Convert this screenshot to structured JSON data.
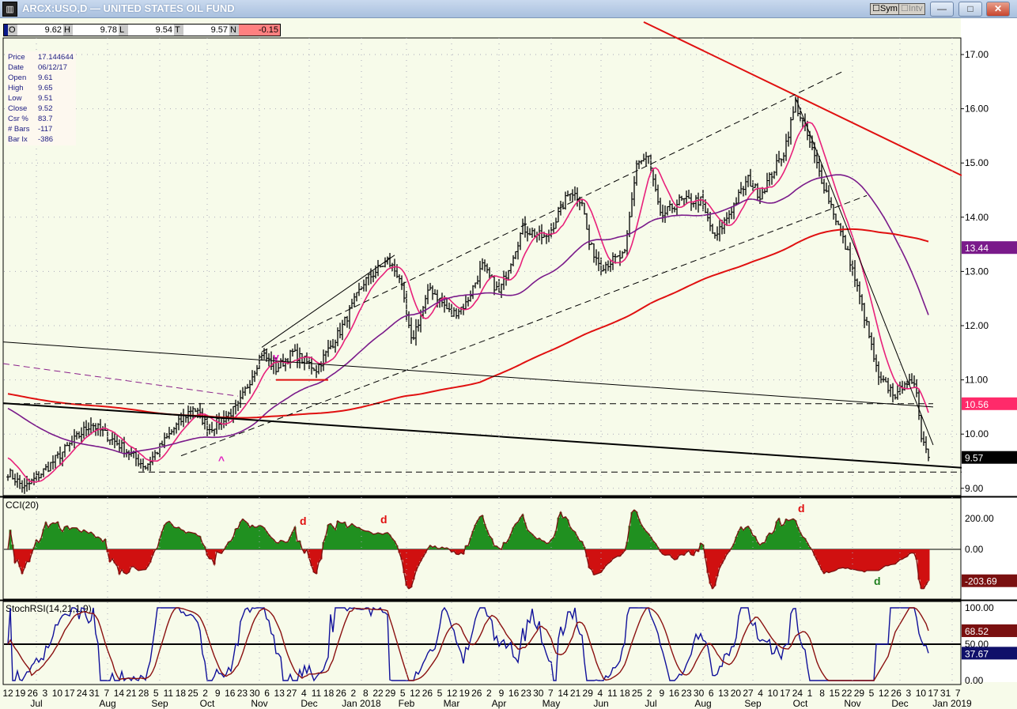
{
  "window": {
    "title": "ARCX:USO,D — UNITED STATES OIL FUND",
    "sym_label": "Sym",
    "intv_label": "Intv",
    "minimize": "—",
    "maximize": "□",
    "close": "✕"
  },
  "ohlc_bar": {
    "o_label": "O",
    "o": "9.62",
    "h_label": "H",
    "h": "9.78",
    "l_label": "L",
    "l": "9.54",
    "t_label": "T",
    "t": "9.57",
    "n_label": "N",
    "n": "-0.15"
  },
  "info": [
    {
      "k": "Price",
      "v": "17.144644"
    },
    {
      "k": "Date",
      "v": "06/12/17"
    },
    {
      "k": "Open",
      "v": "9.61"
    },
    {
      "k": "High",
      "v": "9.65"
    },
    {
      "k": "Low",
      "v": "9.51"
    },
    {
      "k": "Close",
      "v": "9.52"
    },
    {
      "k": "Csr %",
      "v": "83.7"
    },
    {
      "k": "# Bars",
      "v": "-117"
    },
    {
      "k": "Bar Ix",
      "v": "-386"
    }
  ],
  "colors": {
    "accent_red": "#e01010",
    "ma_fast": "#e8207a",
    "ma_mid": "#7a1a8a",
    "ma_slow": "#e01010",
    "cci_pos": "#209020",
    "cci_neg": "#d01010",
    "stoch": "#10109a",
    "stoch_sig": "#8a1010"
  },
  "chart_data": {
    "type": "bar",
    "title": "ARCX:USO,D",
    "ylim": [
      8.9,
      17.6
    ],
    "yticks": [
      "17.00",
      "16.00",
      "15.00",
      "14.00",
      "13.00",
      "12.00",
      "11.00",
      "10.00",
      "9.00"
    ],
    "price_path": [
      [
        0,
        9.3
      ],
      [
        7,
        9.0
      ],
      [
        17,
        9.4
      ],
      [
        35,
        10.2
      ],
      [
        47,
        9.8
      ],
      [
        58,
        9.4
      ],
      [
        70,
        10.1
      ],
      [
        78,
        10.5
      ],
      [
        85,
        10.1
      ],
      [
        97,
        10.5
      ],
      [
        107,
        11.5
      ],
      [
        113,
        11.2
      ],
      [
        120,
        11.5
      ],
      [
        130,
        11.2
      ],
      [
        140,
        11.9
      ],
      [
        150,
        12.8
      ],
      [
        160,
        13.2
      ],
      [
        165,
        12.9
      ],
      [
        170,
        11.7
      ],
      [
        178,
        12.7
      ],
      [
        187,
        12.2
      ],
      [
        193,
        12.4
      ],
      [
        200,
        13.1
      ],
      [
        207,
        12.6
      ],
      [
        217,
        13.8
      ],
      [
        227,
        13.6
      ],
      [
        237,
        14.5
      ],
      [
        242,
        14.3
      ],
      [
        245,
        13.5
      ],
      [
        250,
        13.1
      ],
      [
        260,
        13.3
      ],
      [
        265,
        15.0
      ],
      [
        270,
        15.1
      ],
      [
        275,
        14.0
      ],
      [
        283,
        14.3
      ],
      [
        292,
        14.3
      ],
      [
        298,
        13.6
      ],
      [
        312,
        14.7
      ],
      [
        317,
        14.4
      ],
      [
        327,
        15.2
      ],
      [
        332,
        16.1
      ],
      [
        337,
        15.5
      ],
      [
        343,
        14.7
      ],
      [
        348,
        14.1
      ],
      [
        355,
        13.2
      ],
      [
        362,
        12.0
      ],
      [
        367,
        11.0
      ],
      [
        370,
        10.9
      ],
      [
        375,
        10.7
      ],
      [
        378,
        11.0
      ],
      [
        383,
        10.8
      ],
      [
        385,
        10.0
      ],
      [
        388,
        9.57
      ]
    ],
    "moving_averages": [
      {
        "name": "fast",
        "period": 10
      },
      {
        "name": "mid",
        "period": 50
      },
      {
        "name": "slow",
        "period": 200
      }
    ],
    "trendlines": [
      {
        "name": "red-resistance",
        "color": "#e01010",
        "p1": [
          268,
          17.6
        ],
        "p2": [
          402,
          14.77
        ]
      },
      {
        "name": "long-support",
        "color": "#000",
        "p1": [
          -2,
          10.57
        ],
        "p2": [
          402,
          9.38
        ]
      },
      {
        "name": "thin-down",
        "color": "#000",
        "p1": [
          -2,
          11.7
        ],
        "p2": [
          390,
          10.5
        ]
      },
      {
        "name": "channel-upper",
        "color": "#000",
        "dash": true,
        "p1": [
          107,
          11.52
        ],
        "p2": [
          352,
          16.69
        ]
      },
      {
        "name": "channel-lower",
        "color": "#000",
        "dash": true,
        "p1": [
          73,
          9.6
        ],
        "p2": [
          362,
          14.4
        ]
      },
      {
        "name": "support-930",
        "color": "#000",
        "dash": true,
        "p1": [
          55,
          9.3
        ],
        "p2": [
          402,
          9.3
        ]
      },
      {
        "name": "level-1056",
        "color": "#000",
        "dash": true,
        "p1": [
          -2,
          10.56
        ],
        "p2": [
          390,
          10.56
        ]
      },
      {
        "name": "wedge-left",
        "color": "#000",
        "p1": [
          107,
          11.6
        ],
        "p2": [
          163,
          13.3
        ]
      },
      {
        "name": "decline",
        "color": "#000",
        "p1": [
          332,
          16.2
        ],
        "p2": [
          390,
          9.8
        ]
      },
      {
        "name": "purple-dash",
        "color": "#8a208a",
        "dash": true,
        "p1": [
          -2,
          11.3
        ],
        "p2": [
          97,
          10.7
        ]
      }
    ],
    "annotations": [
      {
        "text": "v",
        "bar": 113,
        "price": 11.35,
        "color": "#e020c0"
      },
      {
        "text": "^",
        "bar": 90,
        "price": 9.45,
        "color": "#e020c0"
      }
    ],
    "right_labels": [
      {
        "text": "13.44",
        "price": 13.44,
        "bg": "#7a1a8a",
        "fg": "#fff"
      },
      {
        "text": "10.56",
        "price": 10.56,
        "bg": "#ff2a6a",
        "fg": "#fff"
      },
      {
        "text": "9.57",
        "price": 9.57,
        "bg": "#000",
        "fg": "#fff"
      }
    ],
    "cci": {
      "label": "CCI(20)",
      "ylim": [
        -260,
        300
      ],
      "yticks": [
        "200.00",
        "0.00"
      ],
      "last": "-203.69",
      "marks": [
        {
          "text": "d",
          "color": "#e01010",
          "bar": 123,
          "value": 160
        },
        {
          "text": "d",
          "color": "#e01010",
          "bar": 157,
          "value": 170
        },
        {
          "text": "d",
          "color": "#e01010",
          "bar": 333,
          "value": 240
        },
        {
          "text": "d",
          "color": "#208020",
          "bar": 365,
          "value": -230
        }
      ]
    },
    "stochrsi": {
      "label": "StochRSI(14,21,1,9)",
      "ylim": [
        -8,
        100
      ],
      "yticks": [
        "100.00",
        "50.00",
        "0.00"
      ],
      "last_sig": "68.52",
      "last": "37.67"
    },
    "x_day_ticks": [
      "12",
      "19",
      "26",
      "3",
      "10",
      "17",
      "24",
      "31",
      "7",
      "14",
      "21",
      "28",
      "5",
      "11",
      "18",
      "25",
      "2",
      "9",
      "16",
      "23",
      "30",
      "6",
      "13",
      "27",
      "4",
      "11",
      "18",
      "26",
      "2",
      "8",
      "22",
      "29",
      "5",
      "12",
      "26",
      "5",
      "12",
      "19",
      "26",
      "2",
      "9",
      "16",
      "23",
      "30",
      "7",
      "14",
      "21",
      "29",
      "4",
      "11",
      "18",
      "25",
      "2",
      "9",
      "16",
      "23",
      "30",
      "6",
      "13",
      "20",
      "27",
      "4",
      "10",
      "17",
      "24",
      "1",
      "8",
      "15",
      "22",
      "29",
      "5",
      "12",
      "26",
      "3",
      "10",
      "17",
      "31",
      "7"
    ],
    "x_months": [
      {
        "t": "Jul",
        "bar": 12
      },
      {
        "t": "Aug",
        "bar": 42
      },
      {
        "t": "Sep",
        "bar": 64
      },
      {
        "t": "Oct",
        "bar": 84
      },
      {
        "t": "Nov",
        "bar": 106
      },
      {
        "t": "Dec",
        "bar": 127
      },
      {
        "t": "Jan 2018",
        "bar": 149
      },
      {
        "t": "Feb",
        "bar": 168
      },
      {
        "t": "Mar",
        "bar": 187
      },
      {
        "t": "Apr",
        "bar": 207
      },
      {
        "t": "May",
        "bar": 229
      },
      {
        "t": "Jun",
        "bar": 250
      },
      {
        "t": "Jul",
        "bar": 271
      },
      {
        "t": "Aug",
        "bar": 293
      },
      {
        "t": "Sep",
        "bar": 314
      },
      {
        "t": "Oct",
        "bar": 334
      },
      {
        "t": "Nov",
        "bar": 356
      },
      {
        "t": "Dec",
        "bar": 376
      },
      {
        "t": "Jan 2019",
        "bar": 398
      }
    ]
  }
}
